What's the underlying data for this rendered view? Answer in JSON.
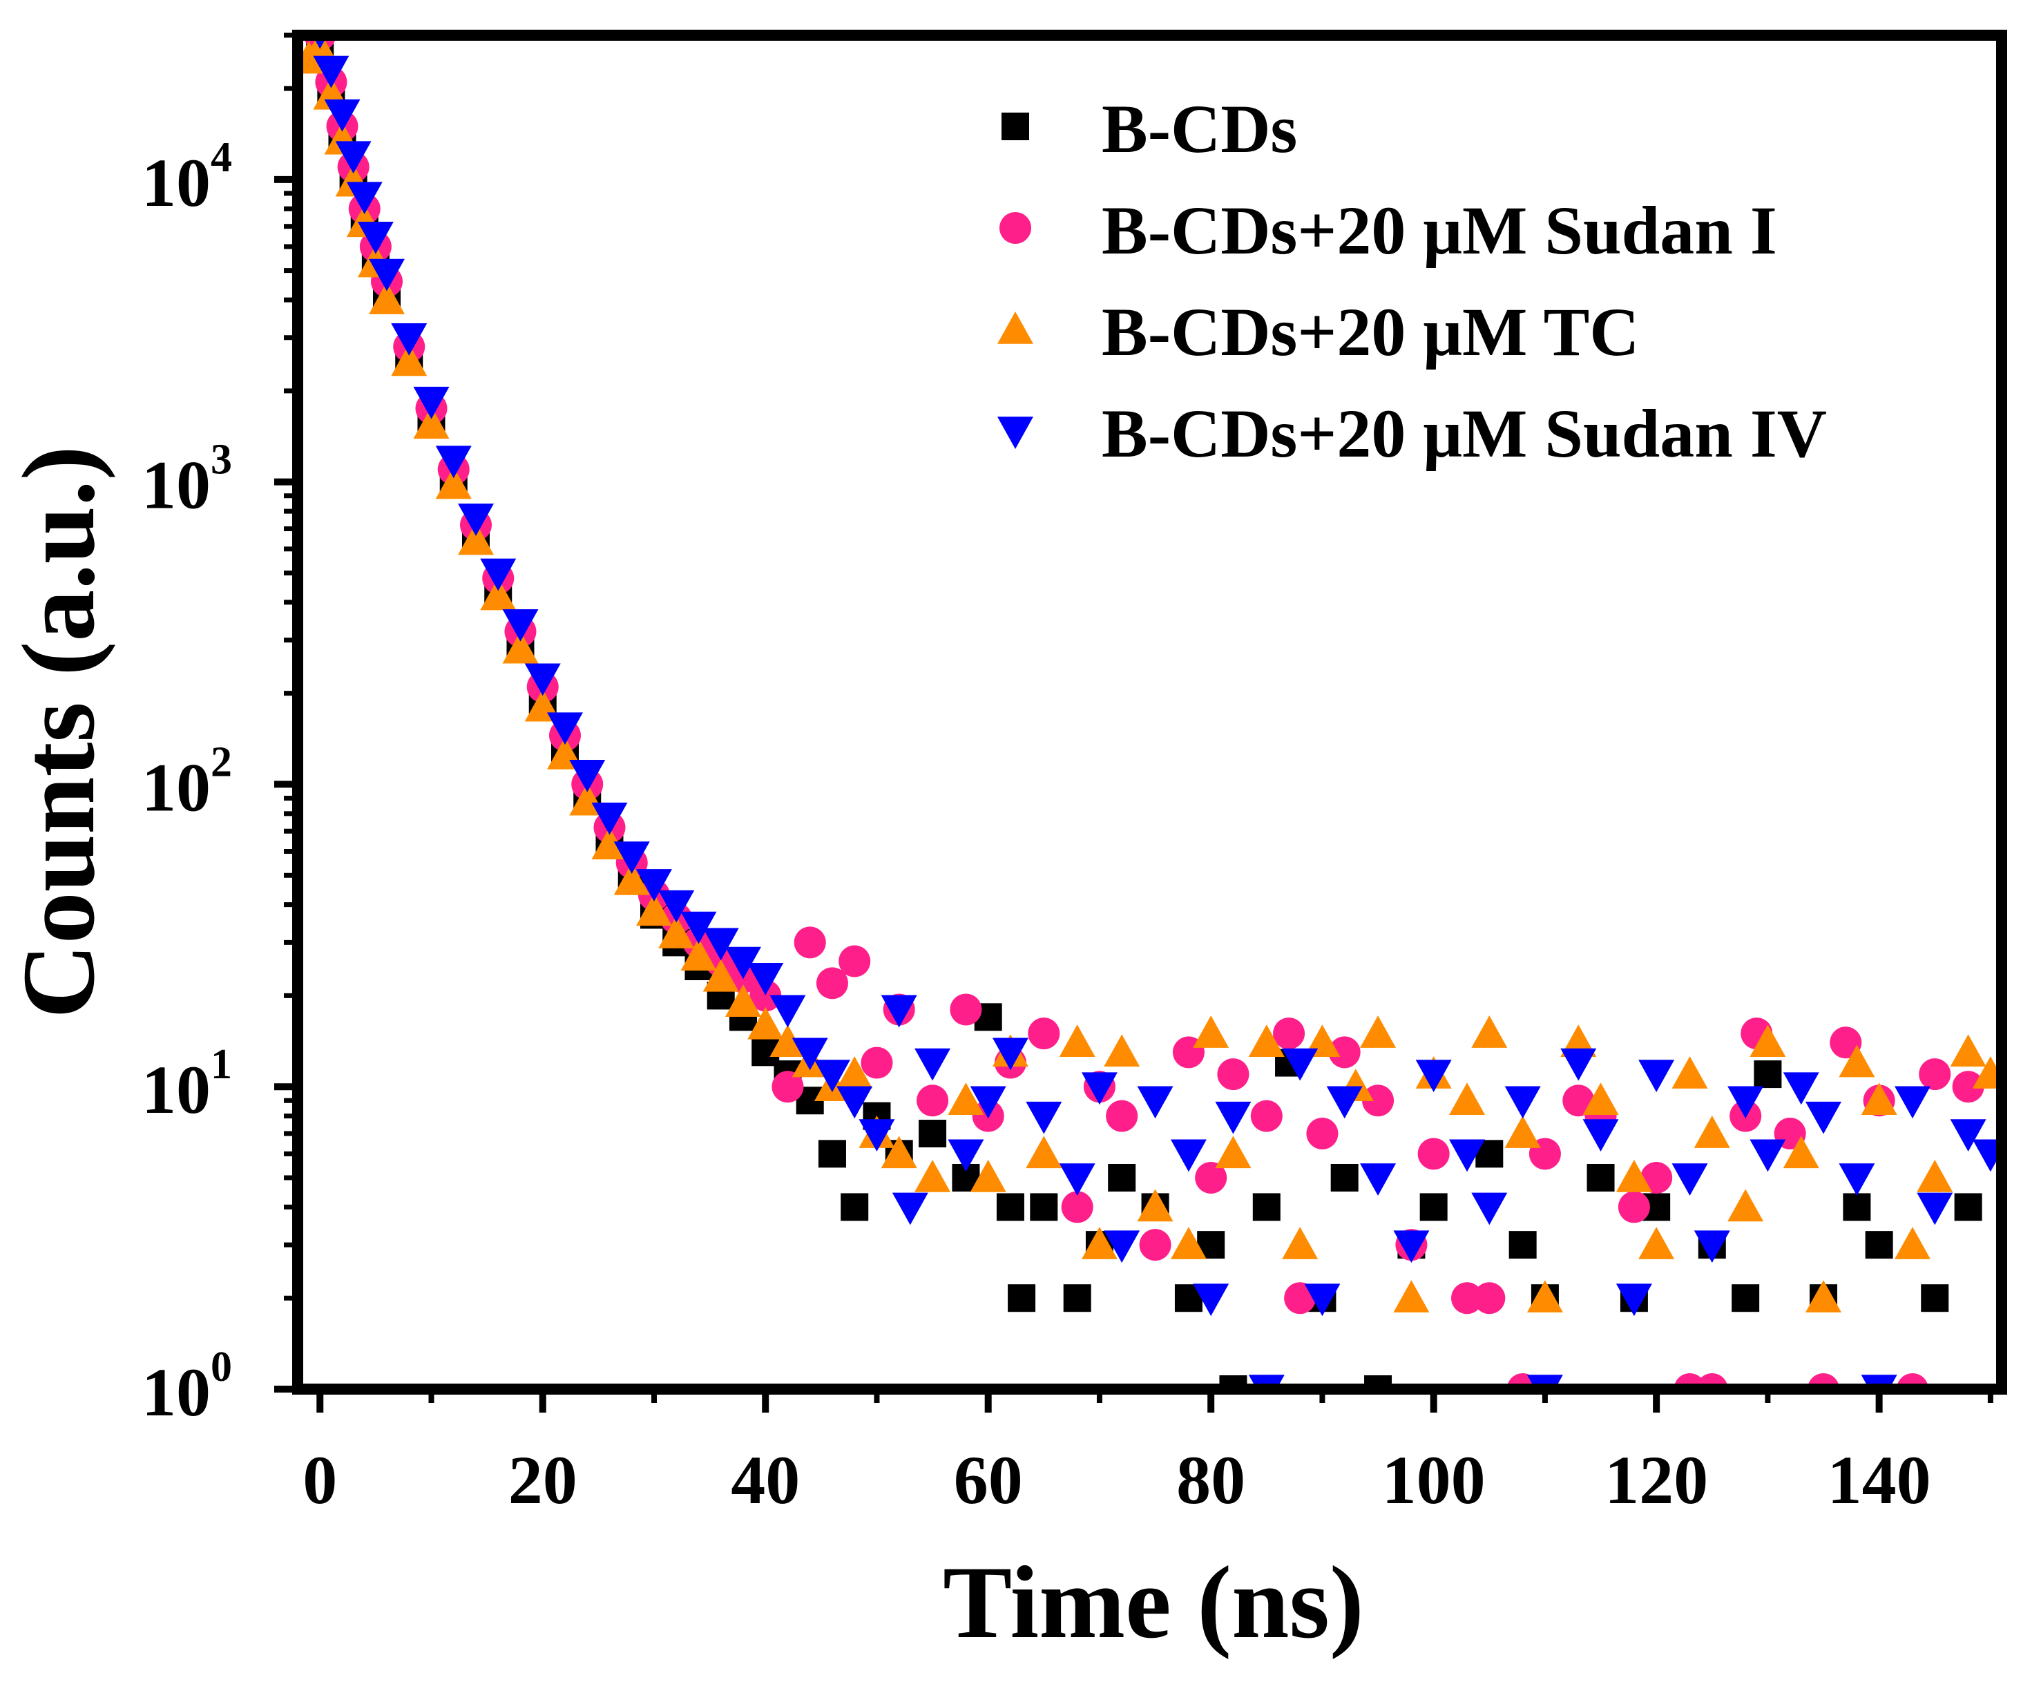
{
  "chart_data": {
    "type": "scatter",
    "title": "",
    "xlabel": "Time (ns)",
    "ylabel": "Counts (a.u.)",
    "xlim": [
      -2,
      151
    ],
    "ylim": [
      1,
      30000
    ],
    "yscale": "log",
    "grid": false,
    "legend_position": "top-right",
    "xticks": [
      0,
      20,
      40,
      60,
      80,
      100,
      120,
      140
    ],
    "xtick_labels": [
      "0",
      "20",
      "40",
      "60",
      "80",
      "100",
      "120",
      "140"
    ],
    "yticks": [
      {
        "value": 1,
        "base": "10",
        "exp": "0"
      },
      {
        "value": 10,
        "base": "10",
        "exp": "1"
      },
      {
        "value": 100,
        "base": "10",
        "exp": "2"
      },
      {
        "value": 1000,
        "base": "10",
        "exp": "3"
      },
      {
        "value": 10000,
        "base": "10",
        "exp": "4"
      }
    ],
    "series": [
      {
        "name": "B-CDs",
        "marker": "square",
        "color": "#000000",
        "x": [
          0,
          1,
          2,
          3,
          4,
          5,
          6,
          8,
          10,
          12,
          14,
          16,
          18,
          20,
          22,
          24,
          26,
          28,
          30,
          32,
          34,
          36,
          38,
          40,
          42,
          44,
          46,
          48,
          50,
          52,
          55,
          58,
          60,
          62,
          63,
          65,
          68,
          70,
          72,
          75,
          78,
          80,
          82,
          85,
          87,
          90,
          92,
          95,
          98,
          100,
          105,
          108,
          110,
          115,
          118,
          120,
          125,
          128,
          130,
          135,
          138,
          140,
          145,
          148
        ],
        "y": [
          28000,
          20000,
          14000,
          10000,
          7500,
          5500,
          4200,
          2600,
          1600,
          1000,
          650,
          430,
          290,
          190,
          130,
          90,
          65,
          48,
          37,
          30,
          25,
          20,
          17,
          13,
          11,
          9,
          6,
          4,
          8,
          6,
          7,
          5,
          17,
          4,
          2,
          4,
          2,
          3,
          5,
          4,
          2,
          3,
          1,
          4,
          12,
          2,
          5,
          1,
          3,
          4,
          6,
          3,
          2,
          5,
          2,
          4,
          3,
          2,
          11,
          2,
          4,
          3,
          2,
          4
        ]
      },
      {
        "name": "B-CDs+20 μM Sudan I",
        "marker": "circle",
        "color": "#ff1f8a",
        "x": [
          0,
          1,
          2,
          3,
          4,
          5,
          6,
          8,
          10,
          12,
          14,
          16,
          18,
          20,
          22,
          24,
          26,
          28,
          30,
          32,
          34,
          36,
          38,
          40,
          42,
          44,
          46,
          48,
          50,
          52,
          55,
          58,
          60,
          62,
          65,
          68,
          70,
          72,
          75,
          78,
          80,
          82,
          85,
          87,
          88,
          90,
          92,
          95,
          98,
          100,
          103,
          105,
          108,
          110,
          113,
          115,
          118,
          120,
          123,
          125,
          128,
          129,
          132,
          135,
          137,
          140,
          143,
          145,
          148
        ],
        "y": [
          30000,
          21000,
          15000,
          11000,
          8000,
          6000,
          4600,
          2800,
          1750,
          1100,
          720,
          480,
          320,
          210,
          145,
          100,
          72,
          55,
          43,
          36,
          30,
          26,
          23,
          20,
          10,
          30,
          22,
          26,
          12,
          18,
          9,
          18,
          8,
          12,
          15,
          4,
          10,
          8,
          3,
          13,
          5,
          11,
          8,
          15,
          2,
          7,
          13,
          9,
          3,
          6,
          2,
          2,
          1,
          6,
          9,
          8,
          4,
          5,
          1,
          1,
          8,
          15,
          7,
          1,
          14,
          9,
          1,
          11,
          10
        ]
      },
      {
        "name": "B-CDs+20 μM TC",
        "marker": "triangle-up",
        "color": "#ff8c00",
        "x": [
          -1,
          0,
          1,
          2,
          3,
          4,
          5,
          6,
          8,
          10,
          12,
          14,
          16,
          18,
          20,
          22,
          24,
          26,
          28,
          30,
          32,
          34,
          36,
          38,
          40,
          42,
          44,
          46,
          48,
          50,
          52,
          55,
          58,
          60,
          62,
          65,
          68,
          70,
          72,
          75,
          78,
          80,
          82,
          85,
          88,
          90,
          93,
          95,
          98,
          100,
          103,
          105,
          108,
          110,
          113,
          115,
          118,
          120,
          123,
          125,
          128,
          130,
          133,
          135,
          138,
          140,
          143,
          145,
          148,
          150
        ],
        "y": [
          25000,
          27000,
          19000,
          13500,
          9800,
          7200,
          5300,
          4000,
          2500,
          1550,
          980,
          640,
          420,
          280,
          180,
          125,
          88,
          63,
          48,
          38,
          32,
          27,
          23,
          19,
          16,
          14,
          12,
          10,
          11,
          7,
          6,
          5,
          9,
          5,
          13,
          6,
          14,
          3,
          13,
          4,
          3,
          15,
          6,
          14,
          3,
          14,
          10,
          15,
          2,
          11,
          9,
          15,
          7,
          2,
          14,
          9,
          5,
          3,
          11,
          7,
          4,
          14,
          6,
          2,
          12,
          9,
          3,
          5,
          13,
          11
        ]
      },
      {
        "name": "B-CDs+20 μM Sudan IV",
        "marker": "triangle-down",
        "color": "#0000ff",
        "x": [
          0,
          1,
          2,
          3,
          4,
          5,
          6,
          8,
          10,
          12,
          14,
          16,
          18,
          20,
          22,
          24,
          26,
          28,
          30,
          32,
          34,
          36,
          38,
          40,
          42,
          44,
          46,
          48,
          50,
          52,
          53,
          55,
          58,
          60,
          62,
          65,
          68,
          70,
          72,
          75,
          78,
          80,
          82,
          85,
          88,
          90,
          92,
          95,
          98,
          100,
          103,
          105,
          108,
          110,
          113,
          115,
          118,
          120,
          123,
          125,
          128,
          130,
          133,
          135,
          138,
          140,
          143,
          145,
          148,
          150
        ],
        "y": [
          31000,
          23000,
          16500,
          12000,
          8800,
          6500,
          4900,
          3000,
          1850,
          1180,
          760,
          500,
          340,
          225,
          155,
          108,
          78,
          58,
          47,
          40,
          34,
          30,
          26,
          23,
          18,
          13,
          11,
          9,
          7,
          18,
          4,
          12,
          6,
          9,
          13,
          8,
          5,
          10,
          3,
          9,
          6,
          2,
          8,
          1,
          12,
          2,
          9,
          5,
          3,
          11,
          6,
          4,
          9,
          1,
          12,
          7,
          2,
          11,
          5,
          3,
          9,
          6,
          10,
          8,
          5,
          1,
          9,
          4,
          7,
          6
        ]
      }
    ]
  }
}
